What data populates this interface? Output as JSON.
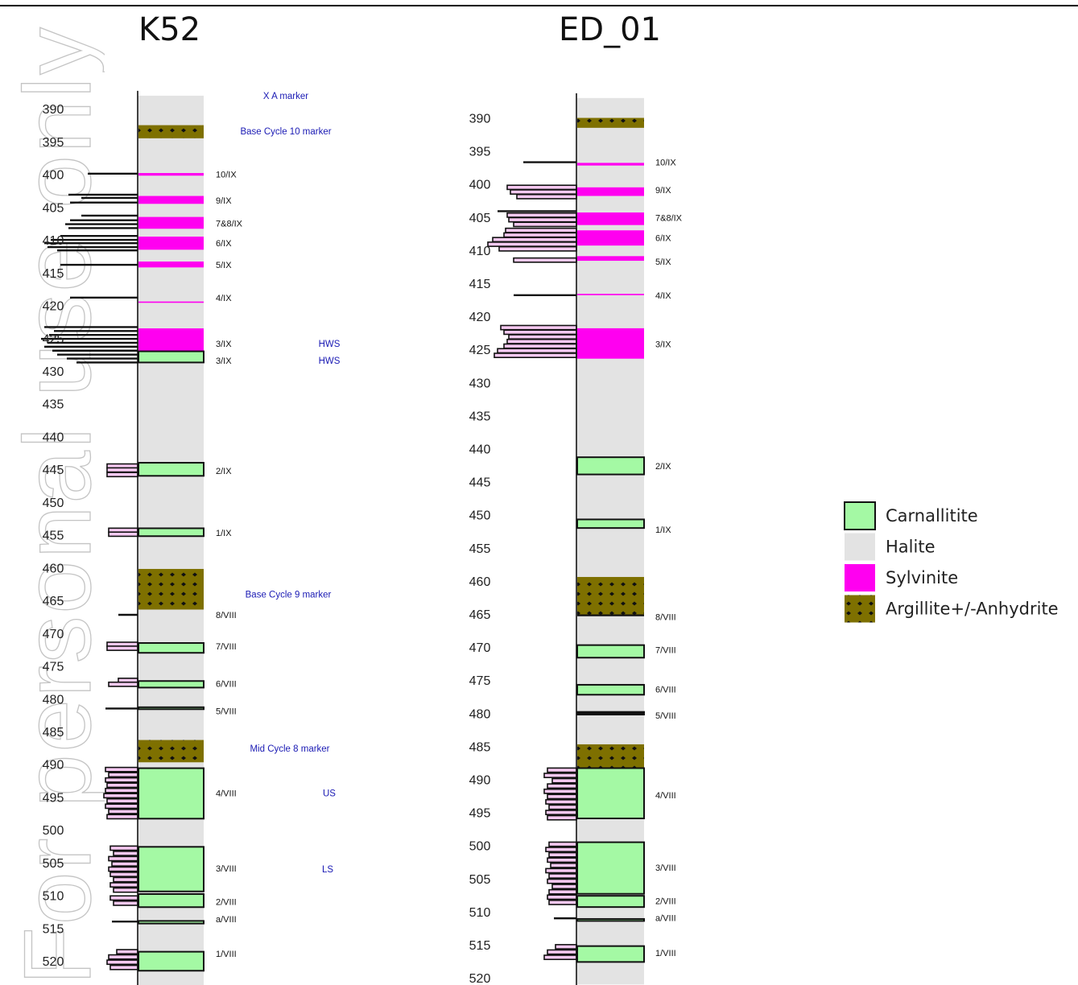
{
  "wells": [
    {
      "name": "K52",
      "depth_ticks": [
        390,
        395,
        400,
        405,
        410,
        415,
        420,
        425,
        430,
        435,
        440,
        445,
        450,
        455,
        460,
        465,
        470,
        475,
        480,
        485,
        490,
        495,
        500,
        505,
        510,
        515,
        520
      ],
      "halite_range": [
        388,
        525
      ],
      "layers": [
        {
          "type": "argillite",
          "top": 392.5,
          "bottom": 394.5
        },
        {
          "type": "sylvinite",
          "top": 399.8,
          "bottom": 400.2
        },
        {
          "type": "sylvinite",
          "top": 403.3,
          "bottom": 404.5
        },
        {
          "type": "sylvinite",
          "top": 406.5,
          "bottom": 408.3
        },
        {
          "type": "sylvinite",
          "top": 409.5,
          "bottom": 411.5
        },
        {
          "type": "sylvinite",
          "top": 413.3,
          "bottom": 414.2
        },
        {
          "type": "sylvinite",
          "top": 419.4,
          "bottom": 419.6
        },
        {
          "type": "sylvinite",
          "top": 423.5,
          "bottom": 427.0
        },
        {
          "type": "carnallitite",
          "top": 427.0,
          "bottom": 428.7
        },
        {
          "type": "carnallitite",
          "top": 444.0,
          "bottom": 446.0
        },
        {
          "type": "carnallitite",
          "top": 454.0,
          "bottom": 455.2
        },
        {
          "type": "argillite",
          "top": 460.2,
          "bottom": 466.4
        },
        {
          "type": "carnallitite",
          "top": 471.5,
          "bottom": 473.0
        },
        {
          "type": "carnallitite",
          "top": 477.3,
          "bottom": 478.3
        },
        {
          "type": "carnallitite",
          "top": 481.3,
          "bottom": 481.6
        },
        {
          "type": "argillite",
          "top": 486.3,
          "bottom": 489.7
        },
        {
          "type": "carnallitite",
          "top": 490.6,
          "bottom": 498.3
        },
        {
          "type": "carnallitite",
          "top": 502.6,
          "bottom": 509.4
        },
        {
          "type": "carnallitite",
          "top": 509.8,
          "bottom": 511.8
        },
        {
          "type": "carnallitite",
          "top": 513.9,
          "bottom": 514.3
        },
        {
          "type": "carnallitite",
          "top": 518.6,
          "bottom": 521.5
        }
      ],
      "unit_labels": [
        {
          "depth": 400.0,
          "text": "10/IX"
        },
        {
          "depth": 404.0,
          "text": "9/IX"
        },
        {
          "depth": 407.5,
          "text": "7&8/IX"
        },
        {
          "depth": 410.5,
          "text": "6/IX"
        },
        {
          "depth": 413.8,
          "text": "5/IX"
        },
        {
          "depth": 418.8,
          "text": "4/IX"
        },
        {
          "depth": 425.8,
          "text": "3/IX"
        },
        {
          "depth": 428.4,
          "text": "3/IX"
        },
        {
          "depth": 445.2,
          "text": "2/IX"
        },
        {
          "depth": 454.7,
          "text": "1/IX"
        },
        {
          "depth": 467.2,
          "text": "8/VIII"
        },
        {
          "depth": 472.0,
          "text": "7/VIII"
        },
        {
          "depth": 477.7,
          "text": "6/VIII"
        },
        {
          "depth": 481.9,
          "text": "5/VIII"
        },
        {
          "depth": 494.4,
          "text": "4/VIII"
        },
        {
          "depth": 505.9,
          "text": "3/VIII"
        },
        {
          "depth": 511.0,
          "text": "2/VIII"
        },
        {
          "depth": 513.6,
          "text": "a/VIII"
        },
        {
          "depth": 518.9,
          "text": "1/VIII"
        }
      ],
      "notes": [
        {
          "depth": 388.0,
          "text": "X A marker"
        },
        {
          "depth": 393.4,
          "text": "Base Cycle 10 marker"
        },
        {
          "depth": 425.8,
          "text": "HWS"
        },
        {
          "depth": 428.4,
          "text": "HWS"
        },
        {
          "depth": 464.1,
          "text": "Base Cycle 9 marker"
        },
        {
          "depth": 487.6,
          "text": "Mid Cycle 8 marker"
        },
        {
          "depth": 494.4,
          "text": "US"
        },
        {
          "depth": 506.0,
          "text": "LS"
        }
      ],
      "log_bars": [
        {
          "depth": 399.9,
          "value": 62,
          "fill": "line"
        },
        {
          "depth": 403.1,
          "value": 86,
          "fill": "line"
        },
        {
          "depth": 403.6,
          "value": 70,
          "fill": "line"
        },
        {
          "depth": 404.3,
          "value": 84,
          "fill": "line"
        },
        {
          "depth": 406.3,
          "value": 70,
          "fill": "line"
        },
        {
          "depth": 407.0,
          "value": 84,
          "fill": "line"
        },
        {
          "depth": 407.6,
          "value": 90,
          "fill": "line"
        },
        {
          "depth": 408.2,
          "value": 86,
          "fill": "line"
        },
        {
          "depth": 409.4,
          "value": 96,
          "fill": "line"
        },
        {
          "depth": 410.0,
          "value": 108,
          "fill": "line"
        },
        {
          "depth": 410.5,
          "value": 116,
          "fill": "line"
        },
        {
          "depth": 411.1,
          "value": 112,
          "fill": "line"
        },
        {
          "depth": 411.6,
          "value": 100,
          "fill": "line"
        },
        {
          "depth": 413.8,
          "value": 96,
          "fill": "line"
        },
        {
          "depth": 418.8,
          "value": 84,
          "fill": "line"
        },
        {
          "depth": 423.3,
          "value": 116,
          "fill": "line"
        },
        {
          "depth": 423.9,
          "value": 104,
          "fill": "line"
        },
        {
          "depth": 424.5,
          "value": 110,
          "fill": "line"
        },
        {
          "depth": 425.1,
          "value": 120,
          "fill": "line"
        },
        {
          "depth": 425.7,
          "value": 112,
          "fill": "line"
        },
        {
          "depth": 426.3,
          "value": 116,
          "fill": "line"
        },
        {
          "depth": 426.9,
          "value": 106,
          "fill": "line"
        },
        {
          "depth": 427.5,
          "value": 100,
          "fill": "line"
        },
        {
          "depth": 428.1,
          "value": 88,
          "fill": "line"
        },
        {
          "depth": 428.7,
          "value": 76,
          "fill": "line"
        },
        {
          "depth": 444.5,
          "value": 38,
          "fill": "pink"
        },
        {
          "depth": 445.1,
          "value": 38,
          "fill": "pink"
        },
        {
          "depth": 445.8,
          "value": 38,
          "fill": "pink"
        },
        {
          "depth": 454.3,
          "value": 36,
          "fill": "pink"
        },
        {
          "depth": 454.9,
          "value": 36,
          "fill": "pink"
        },
        {
          "depth": 467.2,
          "value": 24,
          "fill": "line"
        },
        {
          "depth": 471.7,
          "value": 38,
          "fill": "pink"
        },
        {
          "depth": 472.3,
          "value": 38,
          "fill": "pink"
        },
        {
          "depth": 477.2,
          "value": 24,
          "fill": "pink"
        },
        {
          "depth": 477.8,
          "value": 36,
          "fill": "pink"
        },
        {
          "depth": 481.5,
          "value": 40,
          "fill": "line"
        },
        {
          "depth": 490.8,
          "value": 40,
          "fill": "pink"
        },
        {
          "depth": 491.6,
          "value": 36,
          "fill": "pink"
        },
        {
          "depth": 492.4,
          "value": 40,
          "fill": "pink"
        },
        {
          "depth": 493.2,
          "value": 38,
          "fill": "pink"
        },
        {
          "depth": 494.0,
          "value": 40,
          "fill": "pink"
        },
        {
          "depth": 494.8,
          "value": 42,
          "fill": "pink"
        },
        {
          "depth": 495.6,
          "value": 38,
          "fill": "pink"
        },
        {
          "depth": 496.4,
          "value": 40,
          "fill": "pink"
        },
        {
          "depth": 497.2,
          "value": 36,
          "fill": "pink"
        },
        {
          "depth": 498.0,
          "value": 38,
          "fill": "pink"
        },
        {
          "depth": 502.8,
          "value": 34,
          "fill": "pink"
        },
        {
          "depth": 503.6,
          "value": 30,
          "fill": "pink"
        },
        {
          "depth": 504.4,
          "value": 36,
          "fill": "pink"
        },
        {
          "depth": 505.2,
          "value": 32,
          "fill": "pink"
        },
        {
          "depth": 506.0,
          "value": 36,
          "fill": "pink"
        },
        {
          "depth": 506.8,
          "value": 34,
          "fill": "pink"
        },
        {
          "depth": 507.6,
          "value": 30,
          "fill": "pink"
        },
        {
          "depth": 508.4,
          "value": 34,
          "fill": "pink"
        },
        {
          "depth": 509.2,
          "value": 30,
          "fill": "pink"
        },
        {
          "depth": 510.4,
          "value": 34,
          "fill": "pink"
        },
        {
          "depth": 511.2,
          "value": 30,
          "fill": "pink"
        },
        {
          "depth": 514.0,
          "value": 32,
          "fill": "line"
        },
        {
          "depth": 518.6,
          "value": 26,
          "fill": "pink"
        },
        {
          "depth": 519.4,
          "value": 36,
          "fill": "pink"
        },
        {
          "depth": 520.2,
          "value": 38,
          "fill": "pink"
        },
        {
          "depth": 521.0,
          "value": 34,
          "fill": "pink"
        }
      ]
    },
    {
      "name": "ED_01",
      "depth_ticks": [
        390,
        395,
        400,
        405,
        410,
        415,
        420,
        425,
        430,
        435,
        440,
        445,
        450,
        455,
        460,
        465,
        470,
        475,
        480,
        485,
        490,
        495,
        500,
        505,
        510,
        515,
        520
      ],
      "halite_range": [
        387,
        521
      ],
      "layers": [
        {
          "type": "argillite",
          "top": 390.0,
          "bottom": 391.5
        },
        {
          "type": "sylvinite",
          "top": 396.8,
          "bottom": 397.2
        },
        {
          "type": "sylvinite",
          "top": 400.5,
          "bottom": 401.8
        },
        {
          "type": "sylvinite",
          "top": 404.3,
          "bottom": 406.2
        },
        {
          "type": "sylvinite",
          "top": 407.0,
          "bottom": 409.3
        },
        {
          "type": "sylvinite",
          "top": 410.9,
          "bottom": 411.6
        },
        {
          "type": "sylvinite",
          "top": 416.6,
          "bottom": 416.8
        },
        {
          "type": "sylvinite",
          "top": 421.8,
          "bottom": 426.4
        },
        {
          "type": "carnallitite",
          "top": 441.3,
          "bottom": 443.9
        },
        {
          "type": "carnallitite",
          "top": 450.7,
          "bottom": 452.0
        },
        {
          "type": "argillite",
          "top": 459.4,
          "bottom": 465.1
        },
        {
          "type": "carnallitite",
          "top": 469.7,
          "bottom": 471.6
        },
        {
          "type": "carnallitite",
          "top": 475.7,
          "bottom": 477.2
        },
        {
          "type": "carnallitite",
          "top": 479.8,
          "bottom": 480.2
        },
        {
          "type": "argillite",
          "top": 484.7,
          "bottom": 488.3
        },
        {
          "type": "carnallitite",
          "top": 488.3,
          "bottom": 495.9
        },
        {
          "type": "carnallitite",
          "top": 499.5,
          "bottom": 507.3
        },
        {
          "type": "carnallitite",
          "top": 507.6,
          "bottom": 509.3
        },
        {
          "type": "carnallitite",
          "top": 511.1,
          "bottom": 511.4
        },
        {
          "type": "carnallitite",
          "top": 515.2,
          "bottom": 517.6
        }
      ],
      "unit_labels": [
        {
          "depth": 396.7,
          "text": "10/IX"
        },
        {
          "depth": 400.9,
          "text": "9/IX"
        },
        {
          "depth": 405.1,
          "text": "7&8/IX"
        },
        {
          "depth": 408.1,
          "text": "6/IX"
        },
        {
          "depth": 411.7,
          "text": "5/IX"
        },
        {
          "depth": 416.8,
          "text": "4/IX"
        },
        {
          "depth": 424.2,
          "text": "3/IX"
        },
        {
          "depth": 442.6,
          "text": "2/IX"
        },
        {
          "depth": 452.2,
          "text": "1/IX"
        },
        {
          "depth": 465.4,
          "text": "8/VIII"
        },
        {
          "depth": 470.4,
          "text": "7/VIII"
        },
        {
          "depth": 476.4,
          "text": "6/VIII"
        },
        {
          "depth": 480.3,
          "text": "5/VIII"
        },
        {
          "depth": 492.4,
          "text": "4/VIII"
        },
        {
          "depth": 503.3,
          "text": "3/VIII"
        },
        {
          "depth": 508.4,
          "text": "2/VIII"
        },
        {
          "depth": 510.9,
          "text": "a/VIII"
        },
        {
          "depth": 516.2,
          "text": "1/VIII"
        }
      ],
      "notes": [],
      "log_bars": [
        {
          "depth": 396.7,
          "value": 66,
          "fill": "line"
        },
        {
          "depth": 400.5,
          "value": 86,
          "fill": "pink"
        },
        {
          "depth": 401.2,
          "value": 82,
          "fill": "pink"
        },
        {
          "depth": 401.9,
          "value": 74,
          "fill": "pink"
        },
        {
          "depth": 404.1,
          "value": 98,
          "fill": "line"
        },
        {
          "depth": 404.7,
          "value": 86,
          "fill": "pink"
        },
        {
          "depth": 405.4,
          "value": 84,
          "fill": "pink"
        },
        {
          "depth": 406.1,
          "value": 78,
          "fill": "pink"
        },
        {
          "depth": 407.0,
          "value": 88,
          "fill": "pink"
        },
        {
          "depth": 407.7,
          "value": 90,
          "fill": "pink"
        },
        {
          "depth": 408.4,
          "value": 104,
          "fill": "pink"
        },
        {
          "depth": 409.1,
          "value": 110,
          "fill": "pink"
        },
        {
          "depth": 409.8,
          "value": 96,
          "fill": "pink"
        },
        {
          "depth": 411.5,
          "value": 78,
          "fill": "pink"
        },
        {
          "depth": 416.8,
          "value": 78,
          "fill": "line"
        },
        {
          "depth": 421.7,
          "value": 94,
          "fill": "pink"
        },
        {
          "depth": 422.4,
          "value": 90,
          "fill": "pink"
        },
        {
          "depth": 423.1,
          "value": 84,
          "fill": "pink"
        },
        {
          "depth": 423.8,
          "value": 86,
          "fill": "pink"
        },
        {
          "depth": 424.5,
          "value": 90,
          "fill": "pink"
        },
        {
          "depth": 425.2,
          "value": 98,
          "fill": "pink"
        },
        {
          "depth": 425.9,
          "value": 102,
          "fill": "pink"
        },
        {
          "depth": 465.2,
          "value": 0,
          "fill": "line"
        },
        {
          "depth": 480.0,
          "value": 0,
          "fill": "line"
        },
        {
          "depth": 488.6,
          "value": 36,
          "fill": "pink"
        },
        {
          "depth": 489.4,
          "value": 40,
          "fill": "pink"
        },
        {
          "depth": 490.2,
          "value": 30,
          "fill": "pink"
        },
        {
          "depth": 491.0,
          "value": 36,
          "fill": "pink"
        },
        {
          "depth": 491.8,
          "value": 40,
          "fill": "pink"
        },
        {
          "depth": 492.6,
          "value": 36,
          "fill": "pink"
        },
        {
          "depth": 493.4,
          "value": 38,
          "fill": "pink"
        },
        {
          "depth": 494.2,
          "value": 34,
          "fill": "pink"
        },
        {
          "depth": 495.0,
          "value": 38,
          "fill": "pink"
        },
        {
          "depth": 495.8,
          "value": 36,
          "fill": "pink"
        },
        {
          "depth": 499.8,
          "value": 34,
          "fill": "pink"
        },
        {
          "depth": 500.6,
          "value": 38,
          "fill": "pink"
        },
        {
          "depth": 501.4,
          "value": 34,
          "fill": "pink"
        },
        {
          "depth": 502.2,
          "value": 36,
          "fill": "pink"
        },
        {
          "depth": 503.0,
          "value": 32,
          "fill": "pink"
        },
        {
          "depth": 503.8,
          "value": 38,
          "fill": "pink"
        },
        {
          "depth": 504.6,
          "value": 34,
          "fill": "pink"
        },
        {
          "depth": 505.4,
          "value": 36,
          "fill": "pink"
        },
        {
          "depth": 506.2,
          "value": 30,
          "fill": "pink"
        },
        {
          "depth": 507.0,
          "value": 34,
          "fill": "pink"
        },
        {
          "depth": 507.8,
          "value": 36,
          "fill": "pink"
        },
        {
          "depth": 508.6,
          "value": 34,
          "fill": "pink"
        },
        {
          "depth": 511.0,
          "value": 28,
          "fill": "line"
        },
        {
          "depth": 515.3,
          "value": 26,
          "fill": "pink"
        },
        {
          "depth": 516.1,
          "value": 36,
          "fill": "pink"
        },
        {
          "depth": 516.9,
          "value": 40,
          "fill": "pink"
        }
      ]
    }
  ],
  "legend": [
    {
      "label": "Carnallitite",
      "type": "carnallitite"
    },
    {
      "label": "Halite",
      "type": "halite"
    },
    {
      "label": "Sylvinite",
      "type": "sylvinite"
    },
    {
      "label": "Argillite+/-Anhydrite",
      "type": "argillite"
    }
  ],
  "colors": {
    "carnallitite": "#a4f9a4",
    "halite": "#e3e3e3",
    "sylvinite": "#ff00f0",
    "argillite": "#7e7000",
    "log_pink": "#f6c9f1",
    "note_blue": "#1a1ab4"
  },
  "watermark": "For personal use only"
}
